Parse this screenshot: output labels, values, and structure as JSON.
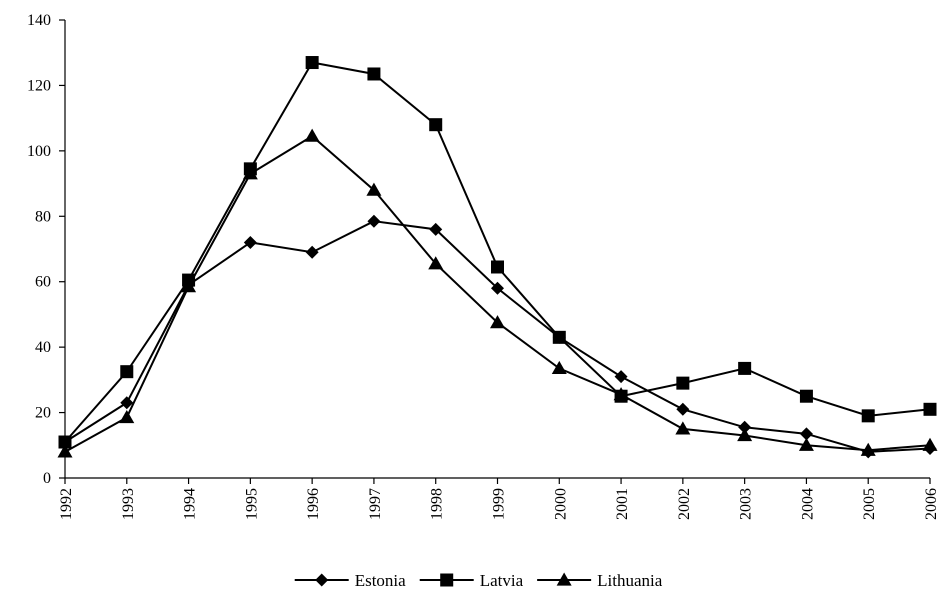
{
  "chart_data": {
    "type": "line",
    "x": [
      "1992",
      "1993",
      "1994",
      "1995",
      "1996",
      "1997",
      "1998",
      "1999",
      "2000",
      "2001",
      "2002",
      "2003",
      "2004",
      "2005",
      "2006"
    ],
    "ylim": [
      0,
      140
    ],
    "yticks": [
      0,
      20,
      40,
      60,
      80,
      100,
      120,
      140
    ],
    "grid": false,
    "legend_position": "bottom",
    "series": [
      {
        "name": "Estonia",
        "marker": "diamond",
        "color": "#000000",
        "values": [
          11,
          23,
          59,
          72,
          69,
          78.5,
          76,
          58,
          43,
          31,
          21,
          15.5,
          13.5,
          8,
          9
        ]
      },
      {
        "name": "Latvia",
        "marker": "square",
        "color": "#000000",
        "values": [
          11,
          32.5,
          60.5,
          94.5,
          127,
          123.5,
          108,
          64.5,
          43,
          25,
          29,
          33.5,
          25,
          19,
          21
        ]
      },
      {
        "name": "Lithuania",
        "marker": "triangle",
        "color": "#000000",
        "values": [
          8,
          18.5,
          58.5,
          93,
          104.5,
          88,
          65.5,
          47.5,
          33.5,
          25.5,
          15,
          13,
          10,
          8.5,
          10
        ]
      }
    ]
  }
}
